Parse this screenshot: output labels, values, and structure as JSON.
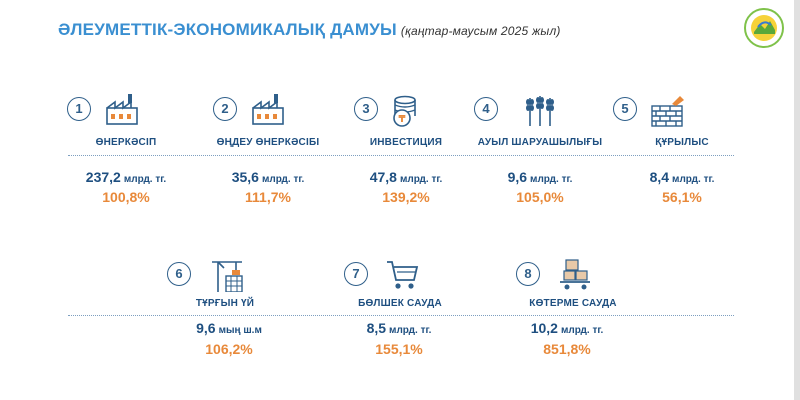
{
  "header": {
    "title": "ӘЛЕУМЕТТІК-ЭКОНОМИКАЛЫҚ ДАМУЫ",
    "subtitle": "(қаңтар-маусым 2025 жыл)"
  },
  "colors": {
    "title": "#3a8fd1",
    "label": "#1e4f80",
    "percent": "#e8893a",
    "logo_ring": "#7fc24a"
  },
  "indicators": [
    {
      "num": "1",
      "icon": "factory-icon",
      "label": "ӨНЕРКӘСІП",
      "value": "237,2",
      "unit": "млрд. тг.",
      "percent": "100,8%"
    },
    {
      "num": "2",
      "icon": "factory-icon",
      "label": "ӨҢДЕУ ӨНЕРКӘСІБІ",
      "value": "35,6",
      "unit": "млрд. тг.",
      "percent": "111,7%"
    },
    {
      "num": "3",
      "icon": "coins-icon",
      "label": "ИНВЕСТИЦИЯ",
      "value": "47,8",
      "unit": "млрд. тг.",
      "percent": "139,2%"
    },
    {
      "num": "4",
      "icon": "wheat-icon",
      "label": "АУЫЛ ШАРУАШЫЛЫҒЫ",
      "value": "9,6",
      "unit": "млрд. тг.",
      "percent": "105,0%"
    },
    {
      "num": "5",
      "icon": "brick-wall-icon",
      "label": "ҚҰРЫЛЫС",
      "value": "8,4",
      "unit": "млрд. тг.",
      "percent": "56,1%"
    },
    {
      "num": "6",
      "icon": "crane-building-icon",
      "label": "ТҰРҒЫН ҮЙ",
      "value": "9,6",
      "unit": "мың ш.м",
      "percent": "106,2%"
    },
    {
      "num": "7",
      "icon": "shopping-cart-icon",
      "label": "БӨЛШЕК САУДА",
      "value": "8,5",
      "unit": "млрд. тг.",
      "percent": "155,1%"
    },
    {
      "num": "8",
      "icon": "warehouse-cart-icon",
      "label": "КӨТЕРМЕ САУДА",
      "value": "10,2",
      "unit": "млрд. тг.",
      "percent": "851,8%"
    }
  ]
}
